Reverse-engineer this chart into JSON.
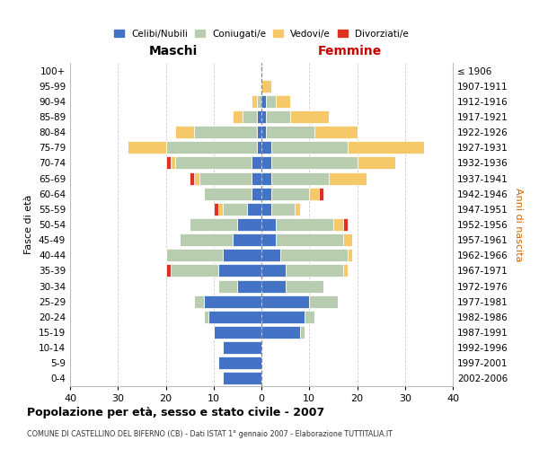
{
  "age_groups": [
    "0-4",
    "5-9",
    "10-14",
    "15-19",
    "20-24",
    "25-29",
    "30-34",
    "35-39",
    "40-44",
    "45-49",
    "50-54",
    "55-59",
    "60-64",
    "65-69",
    "70-74",
    "75-79",
    "80-84",
    "85-89",
    "90-94",
    "95-99",
    "100+"
  ],
  "birth_years": [
    "2002-2006",
    "1997-2001",
    "1992-1996",
    "1987-1991",
    "1982-1986",
    "1977-1981",
    "1972-1976",
    "1967-1971",
    "1962-1966",
    "1957-1961",
    "1952-1956",
    "1947-1951",
    "1942-1946",
    "1937-1941",
    "1932-1936",
    "1927-1931",
    "1922-1926",
    "1917-1921",
    "1912-1916",
    "1907-1911",
    "≤ 1906"
  ],
  "colors": {
    "celibe": "#4472C4",
    "coniugato": "#B8CCB0",
    "vedovo": "#F5C869",
    "divorziato": "#E03020"
  },
  "males": {
    "celibe": [
      8,
      9,
      8,
      10,
      11,
      12,
      5,
      9,
      8,
      6,
      5,
      3,
      2,
      2,
      2,
      1,
      1,
      1,
      0,
      0,
      0
    ],
    "coniugato": [
      0,
      0,
      0,
      0,
      1,
      2,
      4,
      10,
      12,
      11,
      10,
      5,
      10,
      11,
      16,
      19,
      13,
      3,
      1,
      0,
      0
    ],
    "vedovo": [
      0,
      0,
      0,
      0,
      0,
      0,
      0,
      0,
      0,
      0,
      0,
      1,
      0,
      1,
      1,
      8,
      4,
      2,
      1,
      0,
      0
    ],
    "divorziato": [
      0,
      0,
      0,
      0,
      0,
      0,
      0,
      1,
      0,
      0,
      0,
      1,
      0,
      1,
      1,
      0,
      0,
      0,
      0,
      0,
      0
    ]
  },
  "females": {
    "nubile": [
      0,
      0,
      0,
      8,
      9,
      10,
      5,
      5,
      4,
      3,
      3,
      2,
      2,
      2,
      2,
      2,
      1,
      1,
      1,
      0,
      0
    ],
    "coniugata": [
      0,
      0,
      0,
      1,
      2,
      6,
      8,
      12,
      14,
      14,
      12,
      5,
      8,
      12,
      18,
      16,
      10,
      5,
      2,
      0,
      0
    ],
    "vedova": [
      0,
      0,
      0,
      0,
      0,
      0,
      0,
      1,
      1,
      2,
      2,
      1,
      2,
      8,
      8,
      16,
      9,
      8,
      3,
      2,
      0
    ],
    "divorziata": [
      0,
      0,
      0,
      0,
      0,
      0,
      0,
      0,
      0,
      0,
      1,
      0,
      1,
      0,
      0,
      0,
      0,
      0,
      0,
      0,
      0
    ]
  },
  "xlim": [
    -40,
    40
  ],
  "xticks": [
    -40,
    -30,
    -20,
    -10,
    0,
    10,
    20,
    30,
    40
  ],
  "xticklabels": [
    "40",
    "30",
    "20",
    "10",
    "0",
    "10",
    "20",
    "30",
    "40"
  ],
  "title": "Popolazione per età, sesso e stato civile - 2007",
  "subtitle": "COMUNE DI CASTELLINO DEL BIFERNO (CB) - Dati ISTAT 1° gennaio 2007 - Elaborazione TUTTITALIA.IT",
  "ylabel_left": "Fasce di età",
  "ylabel_right": "Anni di nascita",
  "legend_labels": [
    "Celibi/Nubili",
    "Coniugati/e",
    "Vedovi/e",
    "Divorziati/e"
  ],
  "maschi_label": "Maschi",
  "femmine_label": "Femmine",
  "background_color": "#FFFFFF",
  "grid_color": "#CCCCCC",
  "bar_height": 0.82
}
